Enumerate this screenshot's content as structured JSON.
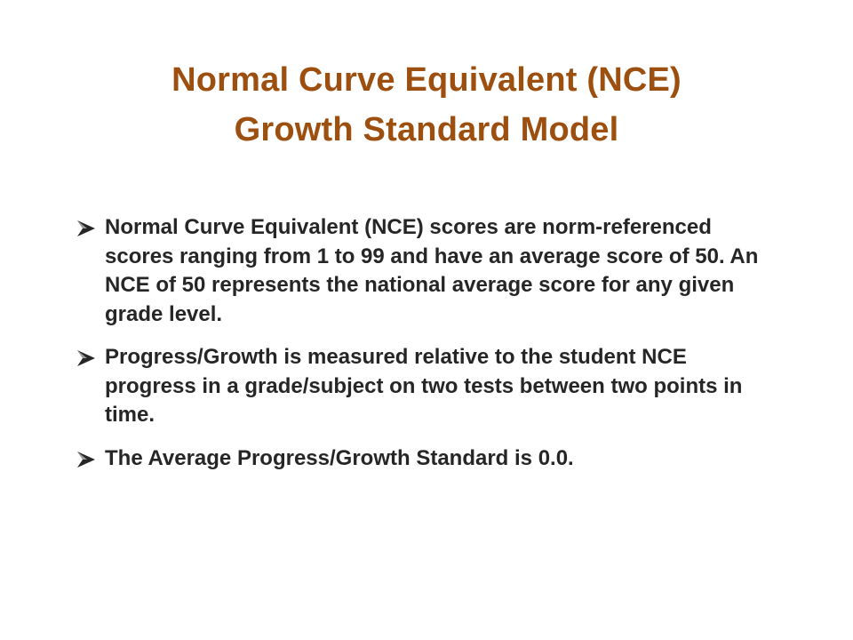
{
  "slide": {
    "title_lines": [
      "Normal Curve Equivalent (NCE)",
      "Growth Standard Model"
    ],
    "bullets": [
      {
        "icon": "arrow-bullet-icon",
        "text": "Normal Curve Equivalent (NCE) scores are norm-referenced scores ranging from 1 to 99 and have an average score of 50. An NCE of 50 represents the national average score for any given grade level."
      },
      {
        "icon": "arrow-bullet-icon",
        "text": "Progress/Growth is measured relative to the student NCE progress in a grade/subject on two tests between two points in time."
      },
      {
        "icon": "arrow-bullet-icon",
        "text": "The Average Progress/Growth Standard is 0.0."
      }
    ],
    "colors": {
      "title": "#9c4f0e",
      "body_text": "#262626",
      "background": "#ffffff"
    }
  }
}
